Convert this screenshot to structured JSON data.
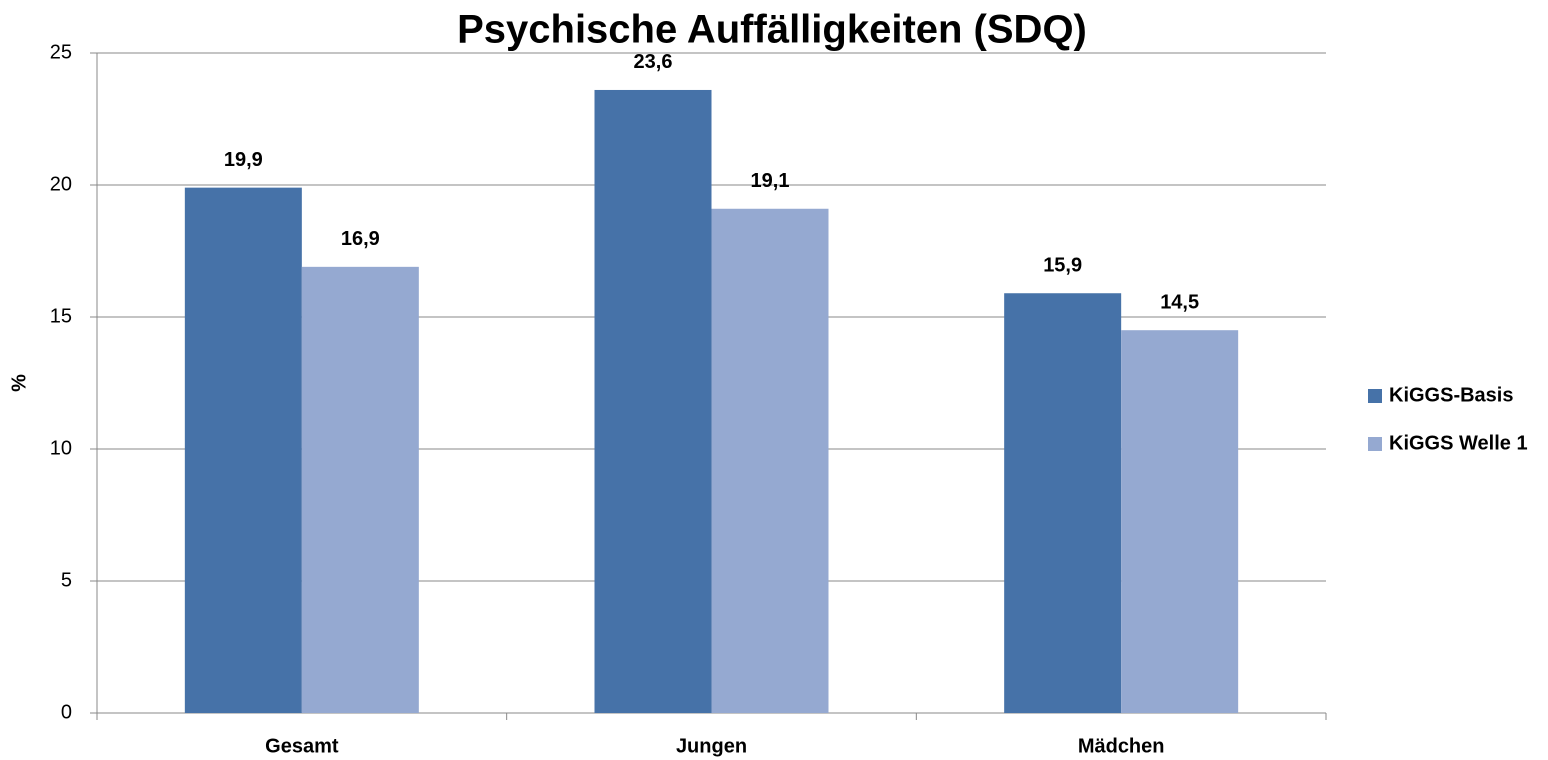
{
  "chart_data": {
    "type": "bar",
    "title": "Psychische Auffälligkeiten (SDQ)",
    "y_label": "%",
    "categories": [
      "Gesamt",
      "Jungen",
      "Mädchen"
    ],
    "series": [
      {
        "name": "KiGGS-Basis",
        "color": "#4672a8",
        "values": [
          19.9,
          23.6,
          15.9
        ],
        "value_labels": [
          "19,9",
          "23,6",
          "15,9"
        ]
      },
      {
        "name": "KiGGS Welle 1",
        "color": "#95a9d1",
        "values": [
          16.9,
          19.1,
          14.5
        ],
        "value_labels": [
          "16,9",
          "19,1",
          "14,5"
        ]
      }
    ],
    "ylim": [
      0,
      25
    ],
    "yticks": [
      0,
      5,
      10,
      15,
      20,
      25
    ],
    "grid": true,
    "legend": "right"
  }
}
